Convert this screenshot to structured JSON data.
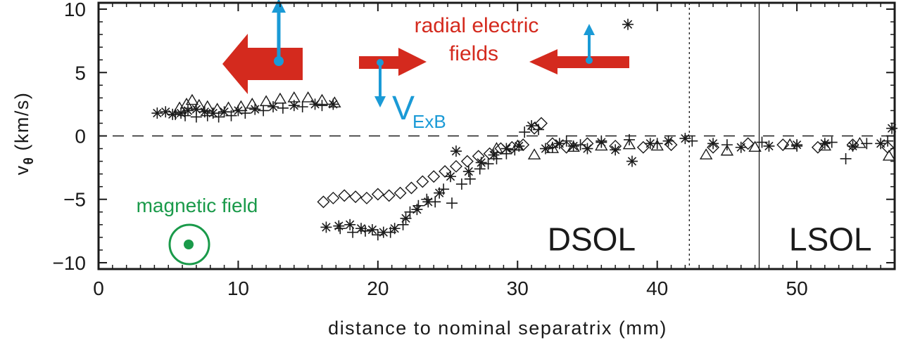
{
  "chart_data": {
    "type": "scatter",
    "xlabel": "distance to nominal separatrix (mm)",
    "ylabel": "v",
    "ylabel_subscript": "θ",
    "ylabel_units": "(km/s)",
    "xlim": [
      0,
      57
    ],
    "ylim": [
      -10.5,
      10.5
    ],
    "xticks": [
      0,
      10,
      20,
      30,
      40,
      50
    ],
    "yticks": [
      -10,
      -5,
      0,
      5,
      10
    ],
    "ytick_labels": [
      "−10",
      "−5",
      "0",
      "5",
      "10"
    ],
    "grid": false,
    "zero_line": "dashed",
    "vlines": [
      {
        "x": 42.3,
        "style": "dotted"
      },
      {
        "x": 47.3,
        "style": "solid"
      }
    ],
    "region_labels": [
      {
        "text": "DSOL",
        "x": 35.3,
        "y": -8.1
      },
      {
        "text": "LSOL",
        "x": 52.4,
        "y": -8.1
      }
    ],
    "annotations": {
      "radial_line1": "radial electric",
      "radial_line2": "fields",
      "vexb_main": "V",
      "vexb_sub": "ExB",
      "magnetic": "magnetic field"
    },
    "colors": {
      "data": "#1a1a1a",
      "efield": "#d42a1e",
      "vexb": "#1a9ad6",
      "magnetic": "#1a9a4a"
    },
    "series": [
      {
        "marker": "asterisk",
        "points": [
          [
            4.2,
            1.8
          ],
          [
            4.8,
            1.9
          ],
          [
            5.3,
            1.7
          ],
          [
            5.9,
            1.8
          ],
          [
            6.4,
            2.0
          ],
          [
            7.0,
            2.1
          ],
          [
            7.6,
            1.9
          ],
          [
            8.2,
            1.8
          ],
          [
            9.0,
            1.9
          ],
          [
            10.0,
            2.0
          ],
          [
            11.2,
            2.1
          ],
          [
            12.5,
            2.3
          ],
          [
            14.0,
            2.4
          ],
          [
            15.5,
            2.5
          ],
          [
            16.8,
            2.5
          ],
          [
            16.3,
            -7.2
          ],
          [
            17.2,
            -7.1
          ],
          [
            18.0,
            -7.0
          ],
          [
            18.8,
            -7.3
          ],
          [
            19.6,
            -7.4
          ],
          [
            20.4,
            -7.6
          ],
          [
            21.2,
            -7.3
          ],
          [
            22.0,
            -6.5
          ],
          [
            22.8,
            -5.8
          ],
          [
            23.6,
            -5.2
          ],
          [
            24.4,
            -4.5
          ],
          [
            25.2,
            -3.2
          ],
          [
            25.6,
            -1.2
          ],
          [
            26.5,
            -2.8
          ],
          [
            27.4,
            -2.1
          ],
          [
            28.3,
            -1.5
          ],
          [
            29.2,
            -1.0
          ],
          [
            30.1,
            -0.8
          ],
          [
            31.0,
            0.8
          ],
          [
            32.0,
            -1.0
          ],
          [
            33.0,
            -0.6
          ],
          [
            34.0,
            -0.8
          ],
          [
            35.0,
            -1.0
          ],
          [
            36.0,
            -0.5
          ],
          [
            37.0,
            -1.1
          ],
          [
            38.2,
            -2.0
          ],
          [
            39.5,
            -0.6
          ],
          [
            40.8,
            -0.4
          ],
          [
            42.0,
            -0.2
          ],
          [
            44.0,
            -0.6
          ],
          [
            46.0,
            -0.9
          ],
          [
            48.0,
            -0.8
          ],
          [
            50.0,
            -0.7
          ],
          [
            52.0,
            -0.6
          ],
          [
            54.0,
            -0.8
          ],
          [
            56.0,
            -0.6
          ],
          [
            56.8,
            0.6
          ],
          [
            37.9,
            8.8
          ]
        ]
      },
      {
        "marker": "plus",
        "points": [
          [
            5.5,
            1.7
          ],
          [
            6.2,
            1.6
          ],
          [
            7.0,
            1.5
          ],
          [
            7.8,
            1.6
          ],
          [
            8.6,
            1.5
          ],
          [
            9.5,
            1.6
          ],
          [
            10.5,
            1.8
          ],
          [
            11.8,
            2.0
          ],
          [
            13.2,
            2.2
          ],
          [
            14.6,
            2.3
          ],
          [
            16.0,
            2.4
          ],
          [
            17.3,
            -7.3
          ],
          [
            18.2,
            -7.6
          ],
          [
            19.1,
            -7.5
          ],
          [
            20.0,
            -7.8
          ],
          [
            20.9,
            -7.6
          ],
          [
            21.8,
            -7.0
          ],
          [
            22.3,
            -6.0
          ],
          [
            22.9,
            -5.5
          ],
          [
            23.5,
            -5.0
          ],
          [
            24.1,
            -5.2
          ],
          [
            24.7,
            -4.2
          ],
          [
            25.3,
            -5.3
          ],
          [
            26.0,
            -3.8
          ],
          [
            26.6,
            -3.4
          ],
          [
            27.3,
            -2.6
          ],
          [
            27.9,
            -2.2
          ],
          [
            28.5,
            -1.8
          ],
          [
            29.2,
            -1.4
          ],
          [
            29.8,
            -1.1
          ],
          [
            30.5,
            0.3
          ],
          [
            31.5,
            0.5
          ],
          [
            32.5,
            -0.9
          ],
          [
            33.5,
            -0.4
          ],
          [
            34.5,
            -0.7
          ],
          [
            36.0,
            -0.4
          ],
          [
            38.0,
            -0.3
          ],
          [
            40.0,
            -0.6
          ],
          [
            42.5,
            -0.4
          ],
          [
            45.0,
            -0.7
          ],
          [
            47.5,
            -0.5
          ],
          [
            50.0,
            -0.8
          ],
          [
            52.5,
            -0.5
          ],
          [
            53.5,
            -1.8
          ],
          [
            55.0,
            -0.6
          ],
          [
            56.5,
            -0.4
          ]
        ]
      },
      {
        "marker": "triangle",
        "points": [
          [
            5.8,
            2.2
          ],
          [
            6.3,
            2.5
          ],
          [
            6.7,
            2.8
          ],
          [
            7.2,
            2.4
          ],
          [
            7.8,
            2.3
          ],
          [
            8.5,
            2.1
          ],
          [
            9.3,
            2.2
          ],
          [
            10.2,
            2.3
          ],
          [
            11.0,
            2.5
          ],
          [
            12.0,
            2.7
          ],
          [
            13.0,
            2.9
          ],
          [
            14.0,
            3.0
          ],
          [
            15.0,
            3.0
          ],
          [
            16.0,
            2.8
          ],
          [
            16.9,
            2.6
          ],
          [
            28.5,
            -1.0
          ],
          [
            30.0,
            -0.8
          ],
          [
            31.2,
            -1.5
          ],
          [
            32.5,
            -1.0
          ],
          [
            34.0,
            -0.9
          ],
          [
            36.0,
            -0.8
          ],
          [
            38.0,
            -0.7
          ],
          [
            40.0,
            -0.8
          ],
          [
            43.5,
            -1.5
          ],
          [
            45.0,
            -1.2
          ],
          [
            47.0,
            -0.9
          ],
          [
            49.5,
            -0.7
          ],
          [
            52.0,
            -0.8
          ],
          [
            54.5,
            -0.6
          ],
          [
            56.6,
            -1.6
          ]
        ]
      },
      {
        "marker": "diamond",
        "points": [
          [
            16.1,
            -5.2
          ],
          [
            16.8,
            -4.9
          ],
          [
            17.6,
            -4.7
          ],
          [
            18.4,
            -4.8
          ],
          [
            19.2,
            -4.9
          ],
          [
            20.0,
            -4.6
          ],
          [
            20.8,
            -4.7
          ],
          [
            21.6,
            -4.5
          ],
          [
            22.4,
            -4.1
          ],
          [
            23.2,
            -3.6
          ],
          [
            24.0,
            -3.2
          ],
          [
            24.8,
            -2.8
          ],
          [
            25.6,
            -2.4
          ],
          [
            26.4,
            -2.0
          ],
          [
            27.2,
            -1.6
          ],
          [
            28.0,
            -1.4
          ],
          [
            28.8,
            -1.0
          ],
          [
            29.6,
            -0.9
          ],
          [
            30.4,
            -0.7
          ],
          [
            31.2,
            0.6
          ],
          [
            31.7,
            1.0
          ],
          [
            32.5,
            -0.6
          ],
          [
            33.5,
            -0.9
          ],
          [
            35.0,
            -0.6
          ],
          [
            37.0,
            -0.8
          ],
          [
            39.0,
            -0.9
          ],
          [
            41.0,
            -0.7
          ],
          [
            44.0,
            -0.9
          ],
          [
            46.5,
            -0.6
          ],
          [
            49.0,
            -0.7
          ],
          [
            51.5,
            -0.9
          ],
          [
            54.0,
            -0.7
          ],
          [
            56.5,
            -0.9
          ]
        ]
      }
    ]
  }
}
